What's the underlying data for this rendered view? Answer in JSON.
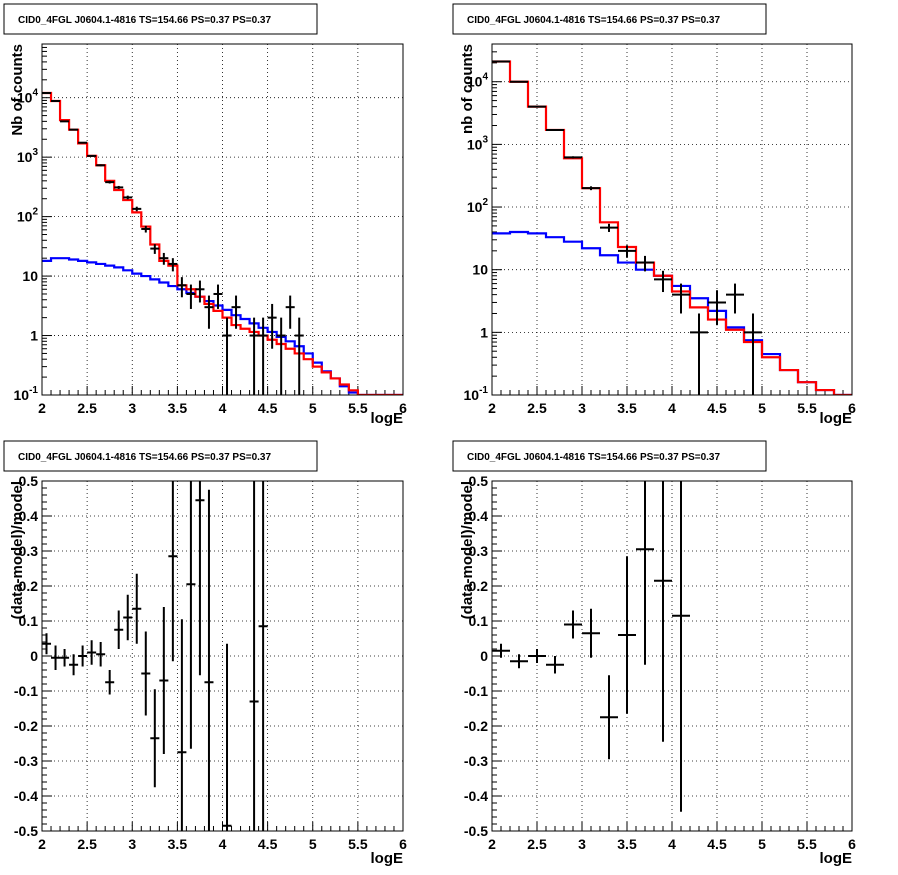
{
  "chart_data": [
    {
      "type": "line",
      "title": "CID0_4FGL J0604.1-4816 TS=154.66 PS=0.37 PS=0.37",
      "xlabel": "logE",
      "ylabel": "Nb of counts",
      "xlim": [
        2,
        6
      ],
      "ylim": [
        0.1,
        80000
      ],
      "yscale": "log",
      "grid": true,
      "x_ticks": [
        "2",
        "2.5",
        "3",
        "3.5",
        "4",
        "4.5",
        "5",
        "5.5",
        "6"
      ],
      "y_ticks": [
        "10^-1",
        "1",
        "10",
        "10^2",
        "10^3",
        "10^4"
      ],
      "colors": {
        "data": "#000000",
        "total_model": "#ff0000",
        "source_model": "#0000ff"
      },
      "bin_edges": [
        2.0,
        2.1,
        2.2,
        2.3,
        2.4,
        2.5,
        2.6,
        2.7,
        2.8,
        2.9,
        3.0,
        3.1,
        3.2,
        3.3,
        3.4,
        3.5,
        3.6,
        3.7,
        3.8,
        3.9,
        4.0,
        4.1,
        4.2,
        4.3,
        4.4,
        4.5,
        4.6,
        4.7,
        4.8,
        4.9,
        5.0,
        5.1,
        5.2,
        5.3,
        5.4,
        5.5,
        5.6,
        5.7,
        5.8,
        5.9,
        6.0
      ],
      "series": [
        {
          "values": [
            12000,
            8800,
            4200,
            2900,
            1700,
            1050,
            730,
            400,
            280,
            190,
            118,
            68,
            34,
            18,
            15,
            7,
            6,
            4.5,
            3.4,
            2.6,
            2.0,
            1.5,
            1.3,
            1.15,
            1.0,
            0.85,
            0.72,
            0.6,
            0.5,
            0.4,
            0.3,
            0.24,
            0.19,
            0.15,
            0.12,
            0.1,
            0.1,
            0.1,
            0.1,
            0.1
          ]
        },
        {
          "values": [
            18,
            20,
            20,
            19,
            18,
            17,
            16,
            15,
            14,
            12.5,
            11,
            10,
            8.8,
            7.8,
            6.8,
            6,
            5.2,
            4.5,
            3.8,
            3.2,
            2.7,
            2.2,
            1.9,
            1.6,
            1.35,
            1.15,
            0.95,
            0.8,
            0.66,
            0.5,
            0.35,
            0.25,
            0.19,
            0.14,
            0.11,
            0.1,
            0.1,
            0.1,
            0.1,
            0.1
          ]
        },
        {
          "points": [
            {
              "x": 2.05,
              "y": 12000,
              "err": 110
            },
            {
              "x": 2.15,
              "y": 8800,
              "err": 94
            },
            {
              "x": 2.25,
              "y": 4000,
              "err": 63
            },
            {
              "x": 2.35,
              "y": 2900,
              "err": 54
            },
            {
              "x": 2.45,
              "y": 1750,
              "err": 42
            },
            {
              "x": 2.55,
              "y": 1050,
              "err": 32
            },
            {
              "x": 2.65,
              "y": 730,
              "err": 27
            },
            {
              "x": 2.75,
              "y": 380,
              "err": 20
            },
            {
              "x": 2.85,
              "y": 310,
              "err": 18
            },
            {
              "x": 2.95,
              "y": 210,
              "err": 15
            },
            {
              "x": 3.05,
              "y": 135,
              "err": 12
            },
            {
              "x": 3.15,
              "y": 62,
              "err": 8
            },
            {
              "x": 3.25,
              "y": 29,
              "err": 5.4
            },
            {
              "x": 3.35,
              "y": 20,
              "err": 4.5
            },
            {
              "x": 3.45,
              "y": 16,
              "err": 4
            },
            {
              "x": 3.55,
              "y": 7,
              "err": 2.6
            },
            {
              "x": 3.65,
              "y": 5,
              "err": 2.2
            },
            {
              "x": 3.75,
              "y": 6,
              "err": 2.4
            },
            {
              "x": 3.85,
              "y": 3,
              "err": 1.7
            },
            {
              "x": 3.95,
              "y": 5,
              "err": 2.2
            },
            {
              "x": 4.05,
              "y": 1,
              "err": 1
            },
            {
              "x": 4.15,
              "y": 3,
              "err": 1.7
            },
            {
              "x": 4.35,
              "y": 1,
              "err": 1
            },
            {
              "x": 4.45,
              "y": 1,
              "err": 1
            },
            {
              "x": 4.55,
              "y": 2,
              "err": 1.4
            },
            {
              "x": 4.65,
              "y": 1,
              "err": 1
            },
            {
              "x": 4.75,
              "y": 3,
              "err": 1.7
            },
            {
              "x": 4.85,
              "y": 1,
              "err": 1
            }
          ]
        }
      ]
    },
    {
      "type": "line",
      "title": "CID0_4FGL J0604.1-4816 TS=154.66 PS=0.37 PS=0.37",
      "xlabel": "logE",
      "ylabel": "nb of counts",
      "xlim": [
        2,
        6
      ],
      "ylim": [
        0.1,
        40000
      ],
      "yscale": "log",
      "grid": true,
      "x_ticks": [
        "2",
        "2.5",
        "3",
        "3.5",
        "4",
        "4.5",
        "5",
        "5.5",
        "6"
      ],
      "y_ticks": [
        "10^-1",
        "1",
        "10",
        "10^2",
        "10^3",
        "10^4"
      ],
      "colors": {
        "data": "#000000",
        "total_model": "#ff0000",
        "source_model": "#0000ff"
      },
      "bin_edges": [
        2.0,
        2.2,
        2.4,
        2.6,
        2.8,
        3.0,
        3.2,
        3.4,
        3.6,
        3.8,
        4.0,
        4.2,
        4.4,
        4.6,
        4.8,
        5.0,
        5.2,
        5.4,
        5.6,
        5.8,
        6.0
      ],
      "series": [
        {
          "values": [
            21000,
            10000,
            4000,
            1700,
            600,
            200,
            57,
            23,
            13,
            8,
            4.5,
            2.5,
            1.6,
            1.1,
            0.7,
            0.4,
            0.25,
            0.16,
            0.12,
            0.1
          ]
        },
        {
          "values": [
            38,
            40,
            38,
            33,
            28,
            22,
            17,
            13,
            10,
            8,
            5.5,
            3.5,
            2.2,
            1.2,
            0.75,
            0.45,
            0.25,
            0.16,
            0.12,
            0.1
          ]
        },
        {
          "points": [
            {
              "x": 2.1,
              "y": 21000,
              "err": 145
            },
            {
              "x": 2.3,
              "y": 10000,
              "err": 100
            },
            {
              "x": 2.5,
              "y": 4000,
              "err": 63
            },
            {
              "x": 2.7,
              "y": 1700,
              "err": 41
            },
            {
              "x": 2.9,
              "y": 620,
              "err": 25
            },
            {
              "x": 3.1,
              "y": 200,
              "err": 14
            },
            {
              "x": 3.3,
              "y": 47,
              "err": 7
            },
            {
              "x": 3.5,
              "y": 20,
              "err": 4.5
            },
            {
              "x": 3.7,
              "y": 13,
              "err": 3.6
            },
            {
              "x": 3.9,
              "y": 7,
              "err": 2.6
            },
            {
              "x": 4.1,
              "y": 4,
              "err": 2
            },
            {
              "x": 4.3,
              "y": 1,
              "err": 1
            },
            {
              "x": 4.5,
              "y": 3,
              "err": 1.7
            },
            {
              "x": 4.7,
              "y": 4,
              "err": 2
            },
            {
              "x": 4.9,
              "y": 1,
              "err": 1
            }
          ]
        }
      ]
    },
    {
      "type": "scatter",
      "title": "CID0_4FGL J0604.1-4816 TS=154.66 PS=0.37 PS=0.37",
      "xlabel": "logE",
      "ylabel": "(data-model)/model",
      "xlim": [
        2,
        6
      ],
      "ylim": [
        -0.5,
        0.5
      ],
      "grid": true,
      "x_ticks": [
        "2",
        "2.5",
        "3",
        "3.5",
        "4",
        "4.5",
        "5",
        "5.5",
        "6"
      ],
      "y_ticks": [
        "-0.5",
        "-0.4",
        "-0.3",
        "-0.2",
        "-0.1",
        "0",
        "0.1",
        "0.2",
        "0.3",
        "0.4",
        "0.5"
      ],
      "half_width": 0.05,
      "points": [
        {
          "x": 2.05,
          "y": 0.035,
          "err": 0.03
        },
        {
          "x": 2.15,
          "y": -0.005,
          "err": 0.035
        },
        {
          "x": 2.25,
          "y": -0.005,
          "err": 0.025
        },
        {
          "x": 2.35,
          "y": -0.025,
          "err": 0.03
        },
        {
          "x": 2.45,
          "y": 0.0,
          "err": 0.03
        },
        {
          "x": 2.55,
          "y": 0.01,
          "err": 0.035
        },
        {
          "x": 2.65,
          "y": 0.005,
          "err": 0.035
        },
        {
          "x": 2.75,
          "y": -0.075,
          "err": 0.035
        },
        {
          "x": 2.85,
          "y": 0.075,
          "err": 0.055
        },
        {
          "x": 2.95,
          "y": 0.11,
          "err": 0.065
        },
        {
          "x": 3.05,
          "y": 0.135,
          "err": 0.1
        },
        {
          "x": 3.15,
          "y": -0.05,
          "err": 0.12
        },
        {
          "x": 3.25,
          "y": -0.235,
          "err": 0.14
        },
        {
          "x": 3.35,
          "y": -0.07,
          "err": 0.21
        },
        {
          "x": 3.45,
          "y": 0.285,
          "err": 0.3
        },
        {
          "x": 3.55,
          "y": -0.275,
          "err": 0.38
        },
        {
          "x": 3.65,
          "y": 0.205,
          "err": 0.47
        },
        {
          "x": 3.75,
          "y": 0.445,
          "err": 0.5
        },
        {
          "x": 3.85,
          "y": -0.075,
          "err": 0.55
        },
        {
          "x": 4.05,
          "y": -0.485,
          "err": 0.52
        },
        {
          "x": 4.35,
          "y": -0.13,
          "err": 0.88
        },
        {
          "x": 4.45,
          "y": 0.085,
          "err": 1.0
        }
      ]
    },
    {
      "type": "scatter",
      "title": "CID0_4FGL J0604.1-4816 TS=154.66 PS=0.37 PS=0.37",
      "xlabel": "logE",
      "ylabel": "(data-model)/model",
      "xlim": [
        2,
        6
      ],
      "ylim": [
        -0.5,
        0.5
      ],
      "grid": true,
      "x_ticks": [
        "2",
        "2.5",
        "3",
        "3.5",
        "4",
        "4.5",
        "5",
        "5.5",
        "6"
      ],
      "y_ticks": [
        "-0.5",
        "-0.4",
        "-0.3",
        "-0.2",
        "-0.1",
        "0",
        "0.1",
        "0.2",
        "0.3",
        "0.4",
        "0.5"
      ],
      "half_width": 0.1,
      "points": [
        {
          "x": 2.1,
          "y": 0.015,
          "err": 0.02
        },
        {
          "x": 2.3,
          "y": -0.015,
          "err": 0.02
        },
        {
          "x": 2.5,
          "y": 0.0,
          "err": 0.02
        },
        {
          "x": 2.7,
          "y": -0.025,
          "err": 0.025
        },
        {
          "x": 2.9,
          "y": 0.09,
          "err": 0.04
        },
        {
          "x": 3.1,
          "y": 0.065,
          "err": 0.07
        },
        {
          "x": 3.3,
          "y": -0.175,
          "err": 0.12
        },
        {
          "x": 3.5,
          "y": 0.06,
          "err": 0.225
        },
        {
          "x": 3.7,
          "y": 0.305,
          "err": 0.33
        },
        {
          "x": 3.9,
          "y": 0.215,
          "err": 0.46
        },
        {
          "x": 4.1,
          "y": 0.115,
          "err": 0.56
        }
      ]
    }
  ]
}
